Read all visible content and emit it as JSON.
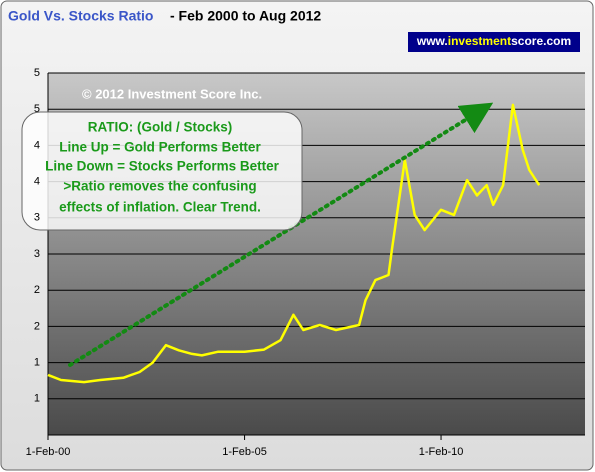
{
  "chart_data": {
    "type": "line",
    "title": "Gold Vs. Stocks Ratio",
    "subtitle": "- Feb 2000 to Aug 2012",
    "website": [
      "www.",
      "investment",
      "score.com"
    ],
    "copyright": "© 2012 Investment Score Inc.",
    "annotation": [
      "RATIO: (Gold / Stocks)",
      "Line Up = Gold Performs Better",
      "Line Down = Stocks Performs Better",
      ">Ratio removes the confusing",
      "effects of inflation.  Clear Trend."
    ],
    "x": [
      "2000-02-01",
      "2000-06-01",
      "2001-01-01",
      "2001-06-01",
      "2002-01-01",
      "2002-06-01",
      "2002-10-01",
      "2003-02-01",
      "2003-06-01",
      "2003-10-01",
      "2004-01-01",
      "2004-06-01",
      "2005-02-01",
      "2005-08-01",
      "2006-01-01",
      "2006-05-01",
      "2006-08-01",
      "2007-01-01",
      "2007-06-01",
      "2008-01-01",
      "2008-03-01",
      "2008-06-01",
      "2008-10-01",
      "2008-11-01",
      "2009-03-01",
      "2009-06-01",
      "2009-09-01",
      "2010-02-01",
      "2010-06-01",
      "2010-10-01",
      "2011-01-01",
      "2011-04-01",
      "2011-06-01",
      "2011-09-01",
      "2011-12-01",
      "2012-03-01",
      "2012-05-01",
      "2012-08-01"
    ],
    "values": [
      0.83,
      0.76,
      0.73,
      0.76,
      0.79,
      0.87,
      1.0,
      1.24,
      1.17,
      1.12,
      1.1,
      1.15,
      1.15,
      1.18,
      1.31,
      1.66,
      1.45,
      1.52,
      1.45,
      1.52,
      1.86,
      2.14,
      2.21,
      2.56,
      3.8,
      3.04,
      2.83,
      3.11,
      3.04,
      3.52,
      3.31,
      3.45,
      3.18,
      3.45,
      4.56,
      3.94,
      3.66,
      3.45
    ],
    "color": "#ffff00",
    "xlim": [
      "2000-02-01",
      "2013-10-01"
    ],
    "xticks": [
      {
        "value": "2000-02-01",
        "label": "1-Feb-00"
      },
      {
        "value": "2005-02-01",
        "label": "1-Feb-05"
      },
      {
        "value": "2010-02-01",
        "label": "1-Feb-10"
      }
    ],
    "ylim": [
      0,
      5
    ],
    "yticks": [
      {
        "value": 0.5,
        "label": "1"
      },
      1,
      {
        "value": 1.5,
        "label": "2"
      },
      2,
      {
        "value": 2.5,
        "label": "3"
      },
      3,
      {
        "value": 3.5,
        "label": "4"
      },
      4,
      {
        "value": 4.5,
        "label": "5"
      },
      5
    ],
    "grid": true
  }
}
